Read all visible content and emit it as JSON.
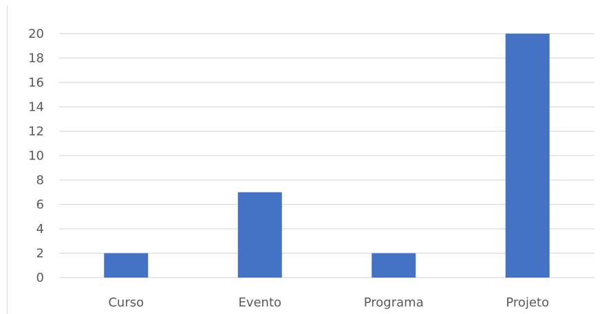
{
  "chart_data": {
    "type": "bar",
    "categories": [
      "Curso",
      "Evento",
      "Programa",
      "Projeto"
    ],
    "values": [
      2,
      7,
      2,
      20
    ],
    "title": "",
    "xlabel": "",
    "ylabel": "",
    "ylim": [
      0,
      20
    ],
    "yticks": [
      0,
      2,
      4,
      6,
      8,
      10,
      12,
      14,
      16,
      18,
      20
    ],
    "grid": true,
    "legend": "none",
    "colors": {
      "bar": "#4472C4",
      "grid": "#D9D9D9",
      "text": "#595959"
    }
  }
}
